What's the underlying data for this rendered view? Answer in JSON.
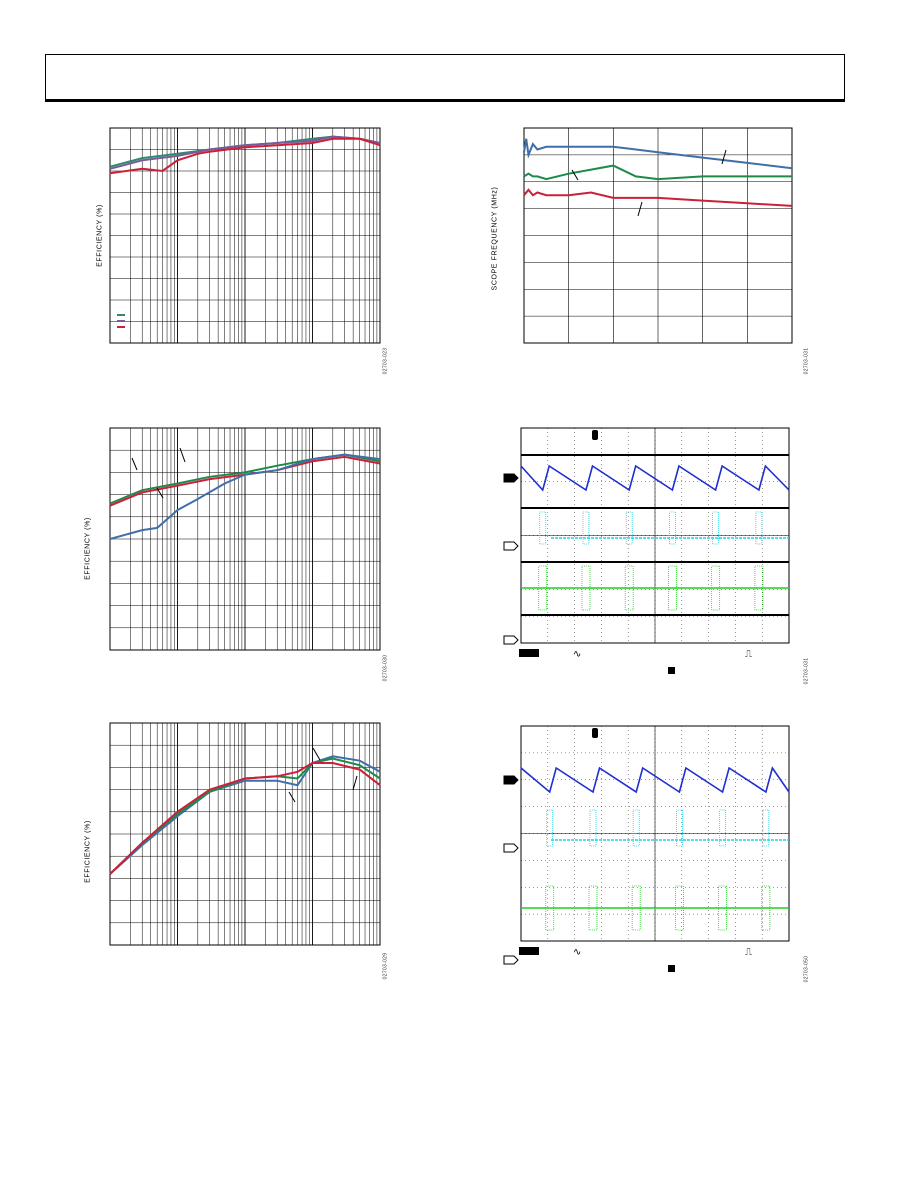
{
  "page": {
    "header": ""
  },
  "chart_data": [
    {
      "id": "eff1",
      "type": "line",
      "title": "",
      "xlabel": "",
      "ylabel": "EFFICIENCY (%)",
      "xscale": "log",
      "xlim": [
        0.1,
        1000
      ],
      "ylim": [
        0,
        100
      ],
      "grid": true,
      "legend": {
        "placement": "bottom-left",
        "entries": [
          "",
          "",
          ""
        ]
      },
      "figure_id": "02703-023",
      "series": [
        {
          "name": "",
          "color": "#2e8b6e",
          "x": [
            0.1,
            0.3,
            1,
            3,
            10,
            30,
            100,
            200,
            500,
            1000
          ],
          "y": [
            82,
            86,
            88,
            90,
            92,
            93,
            95,
            96,
            95,
            93
          ]
        },
        {
          "name": "",
          "color": "#7a5a9a",
          "x": [
            0.1,
            0.3,
            1,
            3,
            10,
            30,
            100,
            200,
            500,
            1000
          ],
          "y": [
            81,
            85,
            87,
            90,
            92,
            93,
            94,
            96,
            95,
            93
          ]
        },
        {
          "name": "",
          "color": "#cc1f3a",
          "x": [
            0.1,
            0.3,
            0.6,
            1,
            2,
            3,
            10,
            30,
            100,
            200,
            500,
            1000
          ],
          "y": [
            79,
            81,
            80,
            85,
            88,
            89,
            91,
            92,
            93,
            95,
            95,
            92
          ]
        }
      ]
    },
    {
      "id": "freq",
      "type": "line",
      "title": "",
      "xlabel": "",
      "ylabel": "SCOPE FREQUENCY (MHz)",
      "xlim": [
        0,
        6
      ],
      "ylim": [
        0,
        8
      ],
      "grid": true,
      "figure_id": "02703-031",
      "annotations": [
        "",
        "",
        ""
      ],
      "series": [
        {
          "name": "",
          "color": "#3f6fa8",
          "x": [
            0,
            0.05,
            0.1,
            0.2,
            0.3,
            0.5,
            1,
            2,
            3,
            4,
            5,
            6
          ],
          "y": [
            7.1,
            7.6,
            7.0,
            7.4,
            7.2,
            7.3,
            7.3,
            7.3,
            7.1,
            6.9,
            6.7,
            6.5
          ]
        },
        {
          "name": "",
          "color": "#1e8a4a",
          "x": [
            0,
            0.1,
            0.2,
            0.3,
            0.5,
            1,
            2,
            2.5,
            3,
            4,
            5,
            6
          ],
          "y": [
            6.2,
            6.3,
            6.2,
            6.2,
            6.1,
            6.3,
            6.6,
            6.2,
            6.1,
            6.2,
            6.2,
            6.2
          ]
        },
        {
          "name": "",
          "color": "#cc1f3a",
          "x": [
            0,
            0.1,
            0.2,
            0.3,
            0.5,
            1,
            1.5,
            2,
            3,
            4,
            5,
            6
          ],
          "y": [
            5.5,
            5.7,
            5.5,
            5.6,
            5.5,
            5.5,
            5.6,
            5.4,
            5.4,
            5.3,
            5.2,
            5.1
          ]
        }
      ]
    },
    {
      "id": "eff2",
      "type": "line",
      "title": "",
      "xlabel": "",
      "ylabel": "EFFICIENCY (%)",
      "xscale": "log",
      "xlim": [
        0.1,
        1000
      ],
      "ylim": [
        0,
        100
      ],
      "grid": true,
      "figure_id": "02703-030",
      "series": [
        {
          "name": "",
          "color": "#1e8a4a",
          "x": [
            0.1,
            0.3,
            1,
            3,
            10,
            30,
            100,
            300,
            1000
          ],
          "y": [
            66,
            72,
            75,
            78,
            80,
            83,
            86,
            88,
            85
          ]
        },
        {
          "name": "",
          "color": "#cc1f3a",
          "x": [
            0.1,
            0.3,
            1,
            3,
            10,
            30,
            100,
            300,
            1000
          ],
          "y": [
            65,
            71,
            74,
            77,
            79,
            81,
            85,
            87,
            84
          ]
        },
        {
          "name": "",
          "color": "#3f6fa8",
          "x": [
            0.1,
            0.3,
            0.5,
            1,
            2,
            5,
            10,
            30,
            100,
            300,
            1000
          ],
          "y": [
            50,
            54,
            55,
            63,
            68,
            75,
            79,
            81,
            86,
            88,
            86
          ]
        }
      ]
    },
    {
      "id": "eff3",
      "type": "line",
      "title": "",
      "xlabel": "",
      "ylabel": "EFFICIENCY (%)",
      "xscale": "log",
      "xlim": [
        0.1,
        1000
      ],
      "ylim": [
        0,
        100
      ],
      "grid": true,
      "figure_id": "02703-029",
      "series": [
        {
          "name": "",
          "color": "#3f6fa8",
          "x": [
            0.1,
            0.3,
            1,
            3,
            10,
            30,
            60,
            100,
            200,
            500,
            1000
          ],
          "y": [
            32,
            45,
            58,
            69,
            74,
            74,
            72,
            82,
            85,
            83,
            78
          ]
        },
        {
          "name": "",
          "color": "#1e8a4a",
          "x": [
            0.1,
            0.3,
            1,
            3,
            10,
            30,
            60,
            100,
            200,
            500,
            1000
          ],
          "y": [
            32,
            46,
            59,
            69,
            75,
            76,
            75,
            82,
            84,
            81,
            75
          ]
        },
        {
          "name": "",
          "color": "#cc1f3a",
          "x": [
            0.1,
            0.3,
            1,
            3,
            10,
            30,
            60,
            100,
            200,
            500,
            1000
          ],
          "y": [
            32,
            46,
            60,
            70,
            75,
            76,
            78,
            82,
            82,
            79,
            72
          ]
        }
      ]
    },
    {
      "id": "scope1",
      "type": "line",
      "title": "",
      "xlabel": "",
      "ylabel": "",
      "ylim": [
        -4,
        4
      ],
      "xlim": [
        0,
        10
      ],
      "grid": true,
      "figure_id": "02703-031",
      "channels": [
        {
          "name": "",
          "color": "#1f2fd0",
          "label": ""
        },
        {
          "name": "",
          "color": "#20d0e0",
          "label": ""
        },
        {
          "name": "",
          "color": "#20d020",
          "label": ""
        }
      ],
      "footer": {
        "badge": "",
        "coupling_symbol": "∿",
        "trigger_symbol": "⎍"
      }
    },
    {
      "id": "scope2",
      "type": "line",
      "title": "",
      "xlabel": "",
      "ylabel": "",
      "ylim": [
        -4,
        4
      ],
      "xlim": [
        0,
        10
      ],
      "grid": true,
      "figure_id": "02703-050",
      "channels": [
        {
          "name": "",
          "color": "#1f2fd0",
          "label": ""
        },
        {
          "name": "",
          "color": "#20d0e0",
          "label": ""
        },
        {
          "name": "",
          "color": "#20d020",
          "label": ""
        }
      ],
      "footer": {
        "badge": "",
        "coupling_symbol": "∿",
        "trigger_symbol": "⎍"
      }
    }
  ]
}
